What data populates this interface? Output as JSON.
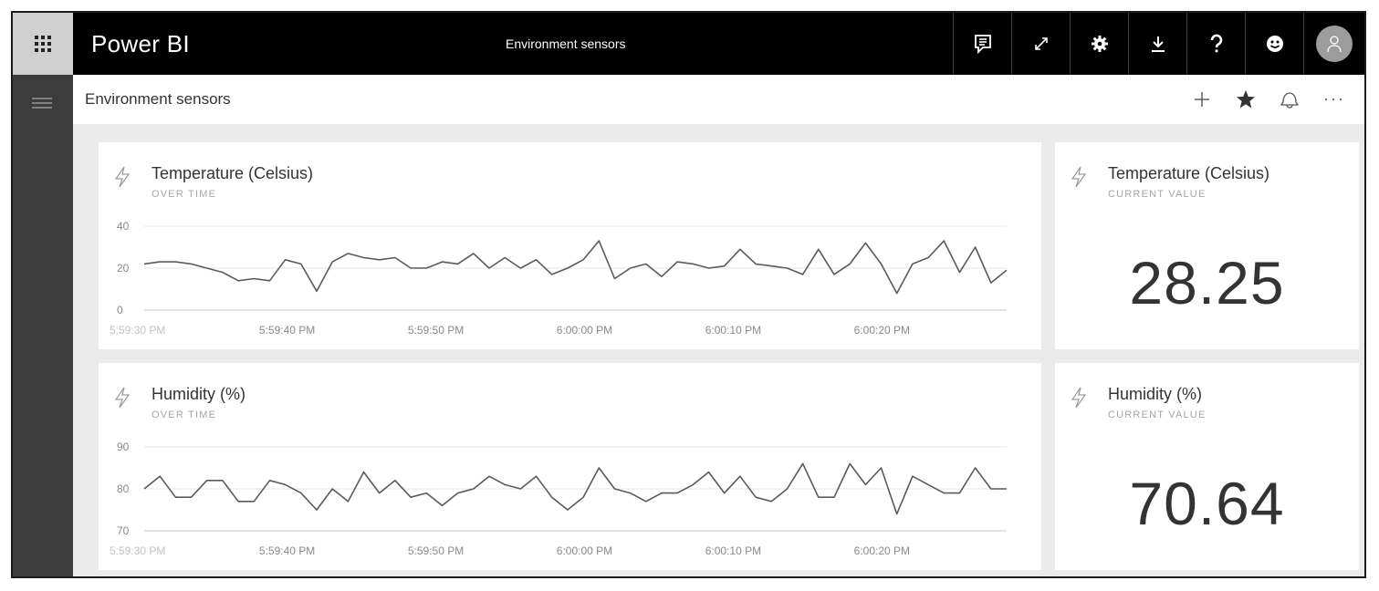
{
  "header": {
    "app_name": "Power BI",
    "report_title": "Environment sensors",
    "actions": [
      {
        "name": "comment",
        "icon": "comment-icon"
      },
      {
        "name": "fullscreen",
        "icon": "expand-icon"
      },
      {
        "name": "settings",
        "icon": "gear-icon"
      },
      {
        "name": "download",
        "icon": "download-icon"
      },
      {
        "name": "help",
        "icon": "help-icon"
      },
      {
        "name": "feedback",
        "icon": "smiley-icon"
      }
    ],
    "avatar_icon": "user-icon"
  },
  "subheader": {
    "dashboard_title": "Environment sensors",
    "actions": [
      {
        "name": "add",
        "icon": "plus-icon",
        "glyph": "+"
      },
      {
        "name": "favorite",
        "icon": "star-icon",
        "glyph": "★"
      },
      {
        "name": "subscribe",
        "icon": "subscribe-icon",
        "glyph": ""
      },
      {
        "name": "more",
        "icon": "more-icon",
        "glyph": "···"
      }
    ]
  },
  "tiles": {
    "temp_chart": {
      "title": "Temperature (Celsius)",
      "subtitle": "OVER TIME"
    },
    "temp_value": {
      "title": "Temperature (Celsius)",
      "subtitle": "CURRENT VALUE",
      "value": "28.25"
    },
    "hum_chart": {
      "title": "Humidity (%)",
      "subtitle": "OVER TIME"
    },
    "hum_value": {
      "title": "Humidity (%)",
      "subtitle": "CURRENT VALUE",
      "value": "70.64"
    }
  },
  "chart_data": [
    {
      "type": "line",
      "title": "Temperature (Celsius)",
      "subtitle": "OVER TIME",
      "ylim": [
        0,
        40
      ],
      "yticks": [
        0,
        20,
        40
      ],
      "xtick_labels": [
        "5:59:30 PM",
        "5:59:40 PM",
        "5:59:50 PM",
        "6:00:00 PM",
        "6:00:10 PM",
        "6:00:20 PM"
      ],
      "x_start_seconds": 0,
      "x_end_seconds": 58,
      "grid": true,
      "series": [
        {
          "values": [
            22,
            23,
            23,
            22,
            20,
            18,
            14,
            15,
            14,
            24,
            22,
            9,
            23,
            27,
            25,
            24,
            25,
            20,
            20,
            23,
            22,
            27,
            20,
            25,
            20,
            24,
            17,
            20,
            24,
            33,
            15,
            20,
            22,
            16,
            23,
            22,
            20,
            21,
            29,
            22,
            21,
            20,
            17,
            29,
            17,
            22,
            32,
            22,
            8,
            22,
            25,
            33,
            18,
            30,
            13,
            19
          ]
        }
      ]
    },
    {
      "type": "line",
      "title": "Humidity (%)",
      "subtitle": "OVER TIME",
      "ylim": [
        70,
        90
      ],
      "yticks": [
        70,
        80,
        90
      ],
      "xtick_labels": [
        "5:59:30 PM",
        "5:59:40 PM",
        "5:59:50 PM",
        "6:00:00 PM",
        "6:00:10 PM",
        "6:00:20 PM"
      ],
      "x_start_seconds": 0,
      "x_end_seconds": 58,
      "grid": true,
      "series": [
        {
          "values": [
            80,
            83,
            78,
            78,
            82,
            82,
            77,
            77,
            82,
            81,
            79,
            75,
            80,
            77,
            84,
            79,
            82,
            78,
            79,
            76,
            79,
            80,
            83,
            81,
            80,
            83,
            78,
            75,
            78,
            85,
            80,
            79,
            77,
            79,
            79,
            81,
            84,
            79,
            83,
            78,
            77,
            80,
            86,
            78,
            78,
            86,
            81,
            85,
            74,
            83,
            81,
            79,
            79,
            85,
            80,
            80
          ]
        }
      ]
    }
  ]
}
